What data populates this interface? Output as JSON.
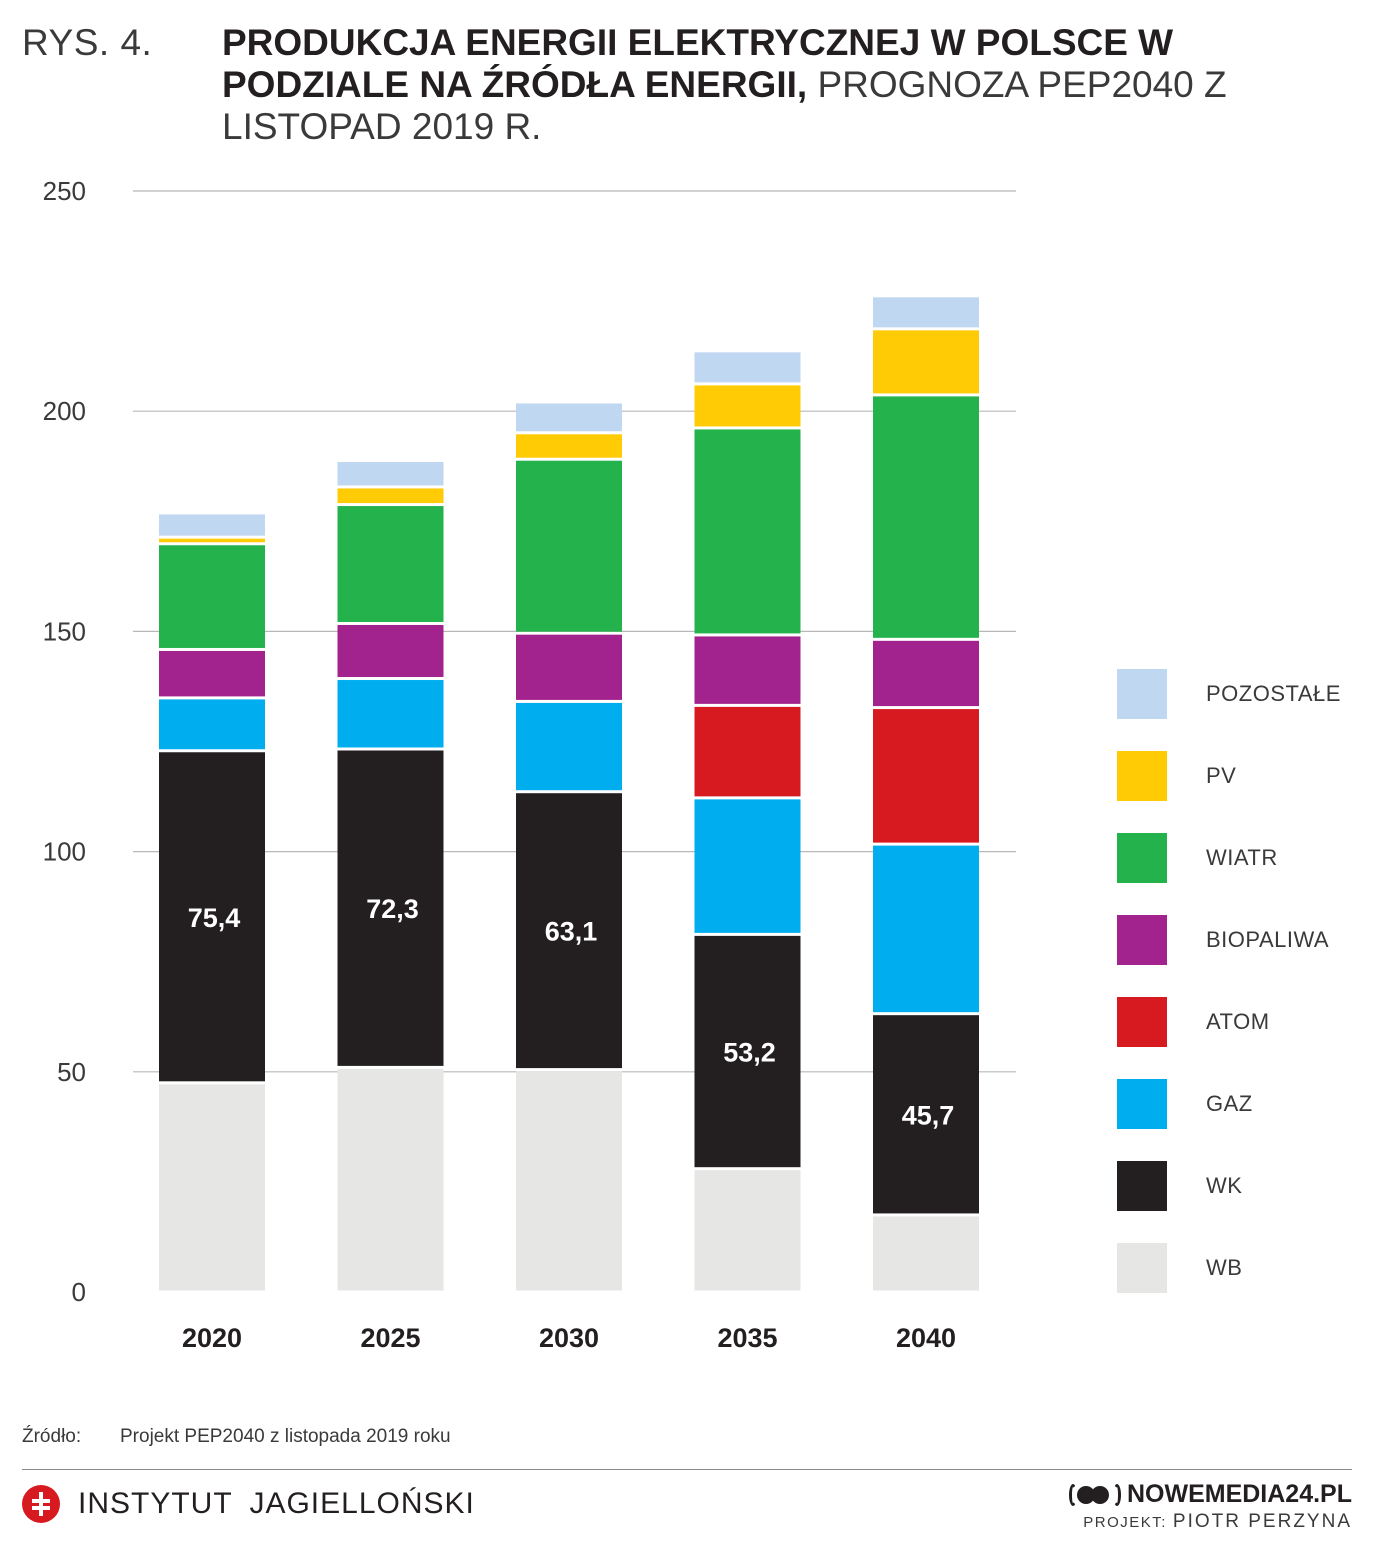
{
  "figure_number": "RYS. 4.",
  "title_bold": "PRODUKCJA ENERGII ELEKTRYCZNEJ W POLSCE W PODZIALE NA ŹRÓDŁA ENERGII,",
  "title_rest": "PROGNOZA PEP2040 Z LISTOPAD 2019 R.",
  "source": {
    "label": "Źródło:",
    "text": "Projekt PEP2040 z listopada 2019 roku"
  },
  "footer": {
    "brand": "INSTYTUT JAGIELLOŃSKI",
    "publisher": "NOWEMEDIA24.PL",
    "credit_label": "PROJEKT:",
    "credit_name": "PIOTR PERZYNA"
  },
  "chart_data": {
    "type": "bar",
    "stacked": true,
    "categories": [
      "2020",
      "2025",
      "2030",
      "2035",
      "2040"
    ],
    "ylim": [
      0,
      250
    ],
    "yticks": [
      0,
      50,
      100,
      150,
      200,
      250
    ],
    "grid": true,
    "legend_position": "right",
    "series": [
      {
        "name": "WB",
        "color": "#e6e6e4",
        "values": [
          47.5,
          51,
          50.5,
          28,
          17.5
        ]
      },
      {
        "name": "WK",
        "color": "#231f20",
        "values": [
          75.4,
          72.3,
          63.1,
          53.2,
          45.7
        ],
        "labels": [
          "75,4",
          "72,3",
          "63,1",
          "53,2",
          "45,7"
        ]
      },
      {
        "name": "GAZ",
        "color": "#00aeef",
        "values": [
          12,
          16,
          20.5,
          31,
          38.5
        ]
      },
      {
        "name": "ATOM",
        "color": "#d71920",
        "values": [
          0,
          0,
          0,
          21,
          31
        ]
      },
      {
        "name": "BIOPALIWA",
        "color": "#a3238e",
        "values": [
          11,
          12.5,
          15.5,
          16,
          15.5
        ]
      },
      {
        "name": "WIATR",
        "color": "#23b24b",
        "values": [
          24,
          27,
          39.5,
          47,
          55.5
        ]
      },
      {
        "name": "PV",
        "color": "#ffcb05",
        "values": [
          1.5,
          4,
          6,
          10,
          15
        ]
      },
      {
        "name": "POZOSTAŁE",
        "color": "#bfd7f0",
        "values": [
          5.5,
          6,
          7,
          7.5,
          7.5
        ]
      }
    ]
  }
}
